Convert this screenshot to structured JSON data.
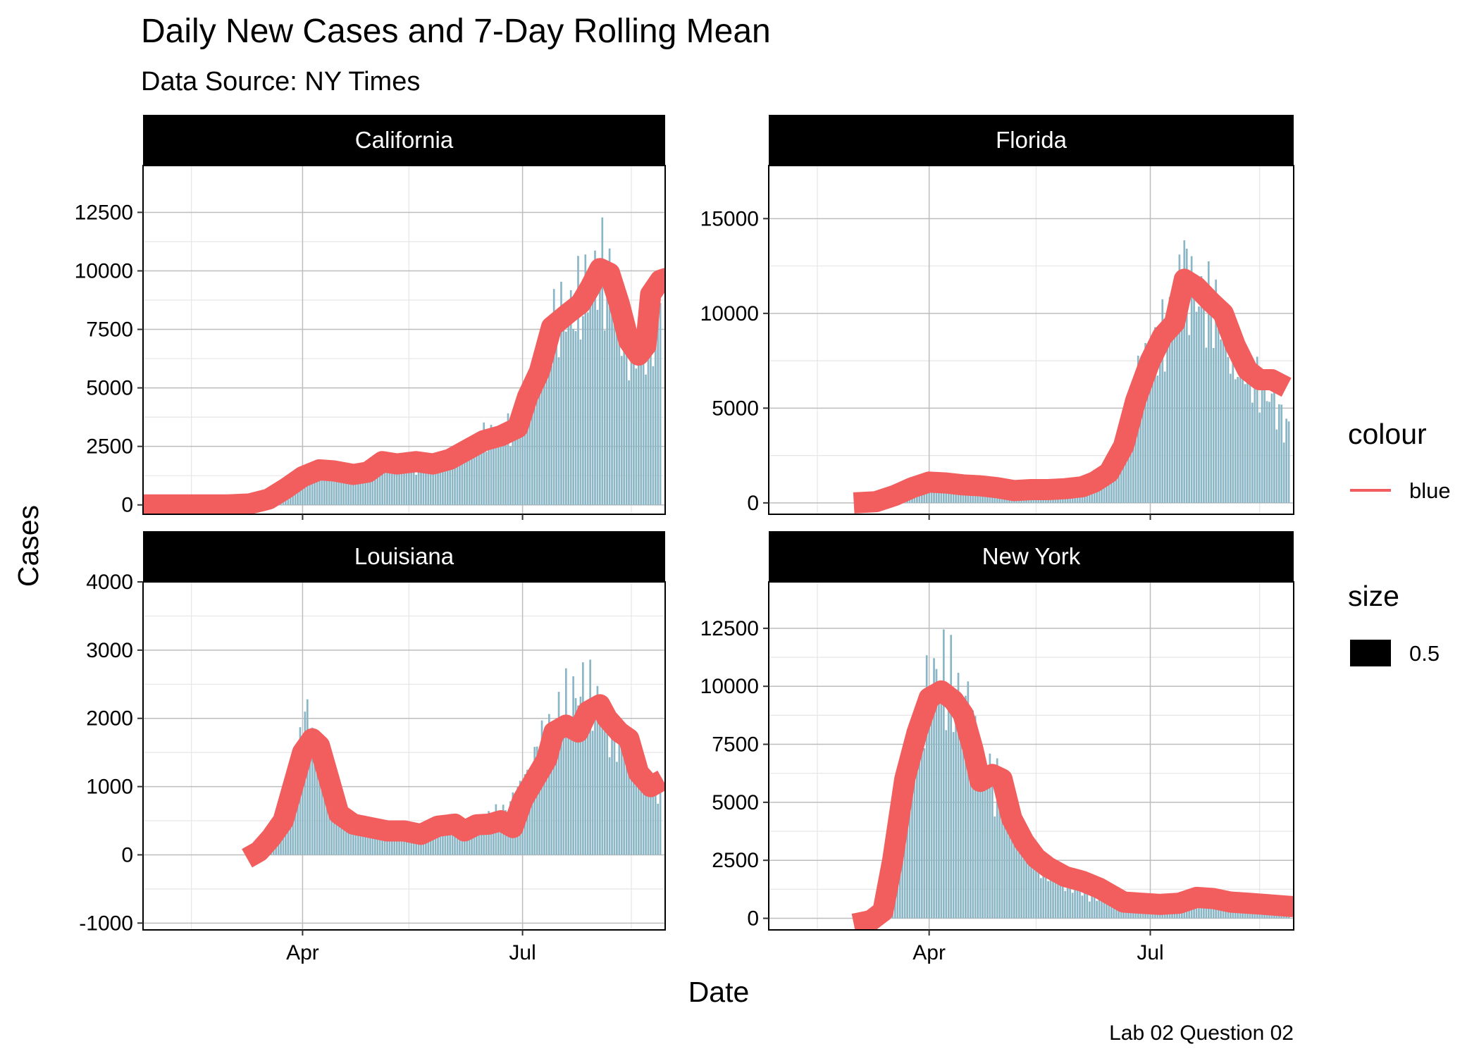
{
  "chart_data": {
    "type": "bar",
    "title": "Daily New Cases and 7-Day Rolling Mean",
    "subtitle": "Data Source: NY Times",
    "caption": "Lab 02 Question 02",
    "xlabel": "Date",
    "ylabel": "Cases",
    "x_tick_labels": [
      "Apr",
      "Jul"
    ],
    "x_range": [
      "2020-01-26",
      "2020-08-29"
    ],
    "grid": true,
    "legend": {
      "placement": "right",
      "colour_title": "colour",
      "colour_label": "blue",
      "size_title": "size",
      "size_label": "0.5"
    },
    "colors": {
      "bars": "#8BB6C6",
      "line": "#F25E5E",
      "strip": "#000000",
      "grid_major": "#BDBDBD",
      "grid_minor": "#E6E6E6"
    },
    "panels": [
      {
        "name": "California",
        "ylim": [
          -400,
          14500
        ],
        "y_ticks": [
          0,
          2500,
          5000,
          7500,
          10000,
          12500
        ],
        "y_tick_labels": [
          "0",
          "2500",
          "5000",
          "7500",
          "10000",
          "12500"
        ],
        "first_date": "2020-01-26",
        "anchors": [
          [
            "2020-01-26",
            0
          ],
          [
            "2020-03-01",
            0
          ],
          [
            "2020-03-15",
            200
          ],
          [
            "2020-03-25",
            700
          ],
          [
            "2020-04-03",
            1300
          ],
          [
            "2020-04-10",
            1500
          ],
          [
            "2020-04-20",
            1300
          ],
          [
            "2020-04-30",
            1400
          ],
          [
            "2020-05-05",
            1800
          ],
          [
            "2020-05-12",
            1700
          ],
          [
            "2020-05-25",
            1800
          ],
          [
            "2020-06-05",
            2100
          ],
          [
            "2020-06-15",
            2800
          ],
          [
            "2020-06-22",
            3000
          ],
          [
            "2020-06-30",
            3700
          ],
          [
            "2020-07-05",
            5300
          ],
          [
            "2020-07-12",
            7200
          ],
          [
            "2020-07-18",
            8000
          ],
          [
            "2020-07-25",
            8500
          ],
          [
            "2020-08-02",
            10200
          ],
          [
            "2020-08-08",
            9300
          ],
          [
            "2020-08-12",
            7600
          ],
          [
            "2020-08-18",
            6400
          ],
          [
            "2020-08-24",
            7500
          ],
          [
            "2020-08-27",
            9500
          ],
          [
            "2020-08-31",
            9700
          ]
        ],
        "rolling_mean": [
          [
            "2020-01-26",
            0
          ],
          [
            "2020-02-15",
            0
          ],
          [
            "2020-03-01",
            0
          ],
          [
            "2020-03-10",
            40
          ],
          [
            "2020-03-18",
            250
          ],
          [
            "2020-03-25",
            700
          ],
          [
            "2020-04-01",
            1200
          ],
          [
            "2020-04-08",
            1500
          ],
          [
            "2020-04-14",
            1450
          ],
          [
            "2020-04-22",
            1300
          ],
          [
            "2020-04-28",
            1400
          ],
          [
            "2020-05-04",
            1850
          ],
          [
            "2020-05-10",
            1750
          ],
          [
            "2020-05-18",
            1850
          ],
          [
            "2020-05-25",
            1750
          ],
          [
            "2020-06-01",
            1950
          ],
          [
            "2020-06-08",
            2350
          ],
          [
            "2020-06-15",
            2750
          ],
          [
            "2020-06-22",
            2950
          ],
          [
            "2020-06-29",
            3300
          ],
          [
            "2020-07-03",
            4600
          ],
          [
            "2020-07-08",
            5700
          ],
          [
            "2020-07-13",
            7600
          ],
          [
            "2020-07-20",
            8200
          ],
          [
            "2020-07-25",
            8600
          ],
          [
            "2020-07-29",
            9300
          ],
          [
            "2020-08-02",
            10100
          ],
          [
            "2020-08-06",
            9900
          ],
          [
            "2020-08-10",
            8600
          ],
          [
            "2020-08-14",
            7000
          ],
          [
            "2020-08-18",
            6400
          ],
          [
            "2020-08-21",
            6800
          ],
          [
            "2020-08-23",
            9000
          ],
          [
            "2020-08-27",
            9600
          ],
          [
            "2020-08-30",
            9700
          ]
        ]
      },
      {
        "name": "Florida",
        "ylim": [
          -600,
          17800
        ],
        "y_ticks": [
          0,
          5000,
          10000,
          15000
        ],
        "y_tick_labels": [
          "0",
          "5000",
          "10000",
          "15000"
        ],
        "first_date": "2020-03-01",
        "anchors": [
          [
            "2020-03-01",
            0
          ],
          [
            "2020-03-10",
            100
          ],
          [
            "2020-03-20",
            600
          ],
          [
            "2020-04-01",
            1100
          ],
          [
            "2020-04-10",
            1000
          ],
          [
            "2020-04-20",
            900
          ],
          [
            "2020-05-01",
            700
          ],
          [
            "2020-05-10",
            700
          ],
          [
            "2020-05-20",
            750
          ],
          [
            "2020-06-01",
            800
          ],
          [
            "2020-06-08",
            1200
          ],
          [
            "2020-06-15",
            2000
          ],
          [
            "2020-06-20",
            3500
          ],
          [
            "2020-06-28",
            7000
          ],
          [
            "2020-07-05",
            8500
          ],
          [
            "2020-07-10",
            10000
          ],
          [
            "2020-07-14",
            12500
          ],
          [
            "2020-07-20",
            11000
          ],
          [
            "2020-07-28",
            10000
          ],
          [
            "2020-08-03",
            8000
          ],
          [
            "2020-08-10",
            6500
          ],
          [
            "2020-08-17",
            6000
          ],
          [
            "2020-08-20",
            5500
          ],
          [
            "2020-08-26",
            4000
          ]
        ],
        "rolling_mean": [
          [
            "2020-03-01",
            0
          ],
          [
            "2020-03-10",
            60
          ],
          [
            "2020-03-18",
            400
          ],
          [
            "2020-03-25",
            800
          ],
          [
            "2020-04-01",
            1100
          ],
          [
            "2020-04-08",
            1050
          ],
          [
            "2020-04-15",
            950
          ],
          [
            "2020-04-22",
            900
          ],
          [
            "2020-04-29",
            800
          ],
          [
            "2020-05-06",
            650
          ],
          [
            "2020-05-13",
            700
          ],
          [
            "2020-05-20",
            700
          ],
          [
            "2020-05-27",
            750
          ],
          [
            "2020-06-03",
            850
          ],
          [
            "2020-06-08",
            1100
          ],
          [
            "2020-06-14",
            1600
          ],
          [
            "2020-06-20",
            3000
          ],
          [
            "2020-06-25",
            5400
          ],
          [
            "2020-07-01",
            7500
          ],
          [
            "2020-07-06",
            8800
          ],
          [
            "2020-07-11",
            9500
          ],
          [
            "2020-07-15",
            11800
          ],
          [
            "2020-07-20",
            11400
          ],
          [
            "2020-07-26",
            10600
          ],
          [
            "2020-07-31",
            10000
          ],
          [
            "2020-08-05",
            8300
          ],
          [
            "2020-08-10",
            7000
          ],
          [
            "2020-08-15",
            6500
          ],
          [
            "2020-08-20",
            6500
          ],
          [
            "2020-08-26",
            6100
          ]
        ]
      },
      {
        "name": "Louisiana",
        "ylim": [
          -1100,
          4000
        ],
        "y_ticks": [
          -1000,
          0,
          1000,
          2000,
          3000,
          4000
        ],
        "y_tick_labels": [
          "-1000",
          "0",
          "1000",
          "2000",
          "3000",
          "4000"
        ],
        "first_date": "2020-03-09",
        "anchors": [
          [
            "2020-03-09",
            20
          ],
          [
            "2020-03-18",
            200
          ],
          [
            "2020-03-27",
            800
          ],
          [
            "2020-04-02",
            2000
          ],
          [
            "2020-04-07",
            1600
          ],
          [
            "2020-04-15",
            700
          ],
          [
            "2020-04-25",
            400
          ],
          [
            "2020-05-10",
            350
          ],
          [
            "2020-05-25",
            400
          ],
          [
            "2020-06-05",
            400
          ],
          [
            "2020-06-15",
            500
          ],
          [
            "2020-06-25",
            700
          ],
          [
            "2020-07-01",
            1000
          ],
          [
            "2020-07-07",
            1500
          ],
          [
            "2020-07-15",
            2000
          ],
          [
            "2020-07-25",
            2400
          ],
          [
            "2020-08-01",
            2200
          ],
          [
            "2020-08-07",
            1800
          ],
          [
            "2020-08-14",
            1700
          ],
          [
            "2020-08-20",
            1200
          ],
          [
            "2020-08-27",
            900
          ]
        ],
        "rolling_mean": [
          [
            "2020-03-09",
            -50
          ],
          [
            "2020-03-14",
            50
          ],
          [
            "2020-03-19",
            250
          ],
          [
            "2020-03-24",
            500
          ],
          [
            "2020-03-28",
            1000
          ],
          [
            "2020-04-01",
            1500
          ],
          [
            "2020-04-05",
            1700
          ],
          [
            "2020-04-08",
            1600
          ],
          [
            "2020-04-12",
            1100
          ],
          [
            "2020-04-16",
            600
          ],
          [
            "2020-04-22",
            450
          ],
          [
            "2020-04-29",
            400
          ],
          [
            "2020-05-06",
            350
          ],
          [
            "2020-05-13",
            350
          ],
          [
            "2020-05-20",
            300
          ],
          [
            "2020-05-27",
            420
          ],
          [
            "2020-06-03",
            450
          ],
          [
            "2020-06-07",
            350
          ],
          [
            "2020-06-12",
            440
          ],
          [
            "2020-06-17",
            450
          ],
          [
            "2020-06-22",
            500
          ],
          [
            "2020-06-27",
            400
          ],
          [
            "2020-07-01",
            800
          ],
          [
            "2020-07-06",
            1100
          ],
          [
            "2020-07-11",
            1400
          ],
          [
            "2020-07-14",
            1800
          ],
          [
            "2020-07-19",
            1900
          ],
          [
            "2020-07-24",
            1800
          ],
          [
            "2020-07-28",
            2100
          ],
          [
            "2020-08-02",
            2200
          ],
          [
            "2020-08-05",
            2000
          ],
          [
            "2020-08-10",
            1800
          ],
          [
            "2020-08-14",
            1700
          ],
          [
            "2020-08-18",
            1200
          ],
          [
            "2020-08-23",
            1000
          ],
          [
            "2020-08-28",
            1100
          ]
        ]
      },
      {
        "name": "New York",
        "ylim": [
          -500,
          14500
        ],
        "y_ticks": [
          0,
          2500,
          5000,
          7500,
          10000,
          12500
        ],
        "y_tick_labels": [
          "0",
          "2500",
          "5000",
          "7500",
          "10000",
          "12500"
        ],
        "first_date": "2020-03-01",
        "anchors": [
          [
            "2020-03-01",
            0
          ],
          [
            "2020-03-08",
            30
          ],
          [
            "2020-03-14",
            300
          ],
          [
            "2020-03-20",
            3000
          ],
          [
            "2020-03-27",
            7500
          ],
          [
            "2020-04-04",
            10500
          ],
          [
            "2020-04-10",
            10000
          ],
          [
            "2020-04-15",
            9500
          ],
          [
            "2020-04-22",
            7000
          ],
          [
            "2020-04-30",
            5500
          ],
          [
            "2020-05-08",
            3500
          ],
          [
            "2020-05-15",
            2200
          ],
          [
            "2020-05-25",
            1700
          ],
          [
            "2020-06-05",
            1000
          ],
          [
            "2020-06-15",
            800
          ],
          [
            "2020-06-25",
            700
          ],
          [
            "2020-07-05",
            600
          ],
          [
            "2020-07-15",
            700
          ],
          [
            "2020-07-25",
            750
          ],
          [
            "2020-08-05",
            700
          ],
          [
            "2020-08-15",
            650
          ],
          [
            "2020-08-27",
            650
          ]
        ],
        "rolling_mean": [
          [
            "2020-03-01",
            -250
          ],
          [
            "2020-03-08",
            -100
          ],
          [
            "2020-03-13",
            300
          ],
          [
            "2020-03-17",
            2500
          ],
          [
            "2020-03-22",
            6000
          ],
          [
            "2020-03-27",
            8000
          ],
          [
            "2020-04-01",
            9500
          ],
          [
            "2020-04-06",
            9800
          ],
          [
            "2020-04-11",
            9400
          ],
          [
            "2020-04-15",
            8800
          ],
          [
            "2020-04-19",
            7300
          ],
          [
            "2020-04-22",
            5900
          ],
          [
            "2020-04-27",
            6200
          ],
          [
            "2020-05-01",
            6000
          ],
          [
            "2020-05-05",
            4300
          ],
          [
            "2020-05-10",
            3300
          ],
          [
            "2020-05-15",
            2600
          ],
          [
            "2020-05-20",
            2200
          ],
          [
            "2020-05-27",
            1800
          ],
          [
            "2020-06-03",
            1600
          ],
          [
            "2020-06-10",
            1300
          ],
          [
            "2020-06-15",
            1000
          ],
          [
            "2020-06-20",
            700
          ],
          [
            "2020-06-27",
            650
          ],
          [
            "2020-07-05",
            600
          ],
          [
            "2020-07-13",
            650
          ],
          [
            "2020-07-20",
            900
          ],
          [
            "2020-07-27",
            850
          ],
          [
            "2020-08-03",
            700
          ],
          [
            "2020-08-10",
            650
          ],
          [
            "2020-08-17",
            600
          ],
          [
            "2020-08-23",
            550
          ],
          [
            "2020-08-29",
            500
          ]
        ]
      }
    ]
  }
}
